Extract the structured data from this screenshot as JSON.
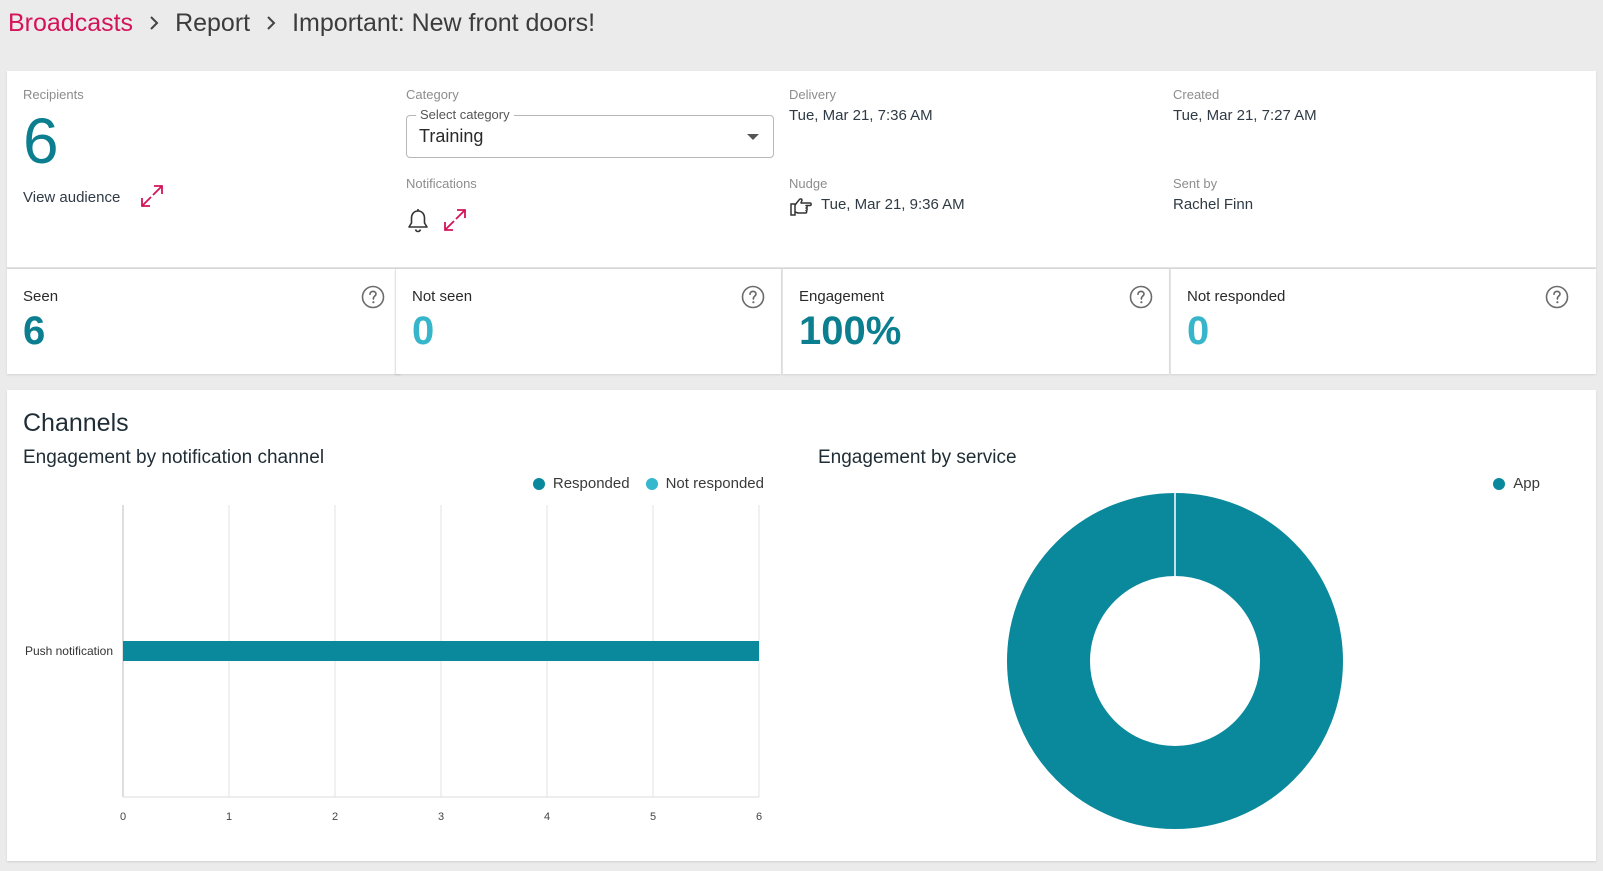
{
  "breadcrumb": {
    "root": "Broadcasts",
    "middle": "Report",
    "current": "Important: New front doors!"
  },
  "info": {
    "recipients_label": "Recipients",
    "recipients_value": "6",
    "view_audience": "View audience",
    "category_label": "Category",
    "category_select_legend": "Select category",
    "category_value": "Training",
    "notifications_label": "Notifications",
    "delivery_label": "Delivery",
    "delivery_value": "Tue, Mar 21, 7:36 AM",
    "nudge_label": "Nudge",
    "nudge_value": "Tue, Mar 21, 9:36 AM",
    "created_label": "Created",
    "created_value": "Tue, Mar 21, 7:27 AM",
    "sent_by_label": "Sent by",
    "sent_by_value": "Rachel Finn"
  },
  "stats": [
    {
      "label": "Seen",
      "value": "6",
      "color": "#0b7f8f"
    },
    {
      "label": "Not seen",
      "value": "0",
      "color": "#37b6cb"
    },
    {
      "label": "Engagement",
      "value": "100%",
      "color": "#0b7f8f"
    },
    {
      "label": "Not responded",
      "value": "0",
      "color": "#37b6cb"
    }
  ],
  "channels": {
    "title": "Channels",
    "bar_chart_title": "Engagement by notification channel",
    "pie_chart_title": "Engagement by service"
  },
  "colors": {
    "accent": "#d4145a",
    "primary": "#0b899c",
    "secondary": "#33b8cd"
  },
  "chart_data": [
    {
      "type": "bar",
      "orientation": "horizontal",
      "stacked": true,
      "categories": [
        "Push notification"
      ],
      "series": [
        {
          "name": "Responded",
          "values": [
            6
          ],
          "color": "#0b899c"
        },
        {
          "name": "Not responded",
          "values": [
            0
          ],
          "color": "#33b8cd"
        }
      ],
      "xlim": [
        0,
        6
      ],
      "x_ticks": [
        "0",
        "1",
        "2",
        "3",
        "4",
        "5",
        "6"
      ],
      "grid": true,
      "legend_position": "top-right"
    },
    {
      "type": "pie",
      "donut": true,
      "labels": [
        "App"
      ],
      "values": [
        6
      ],
      "colors": [
        "#0b899c"
      ],
      "legend_position": "top-right"
    }
  ]
}
